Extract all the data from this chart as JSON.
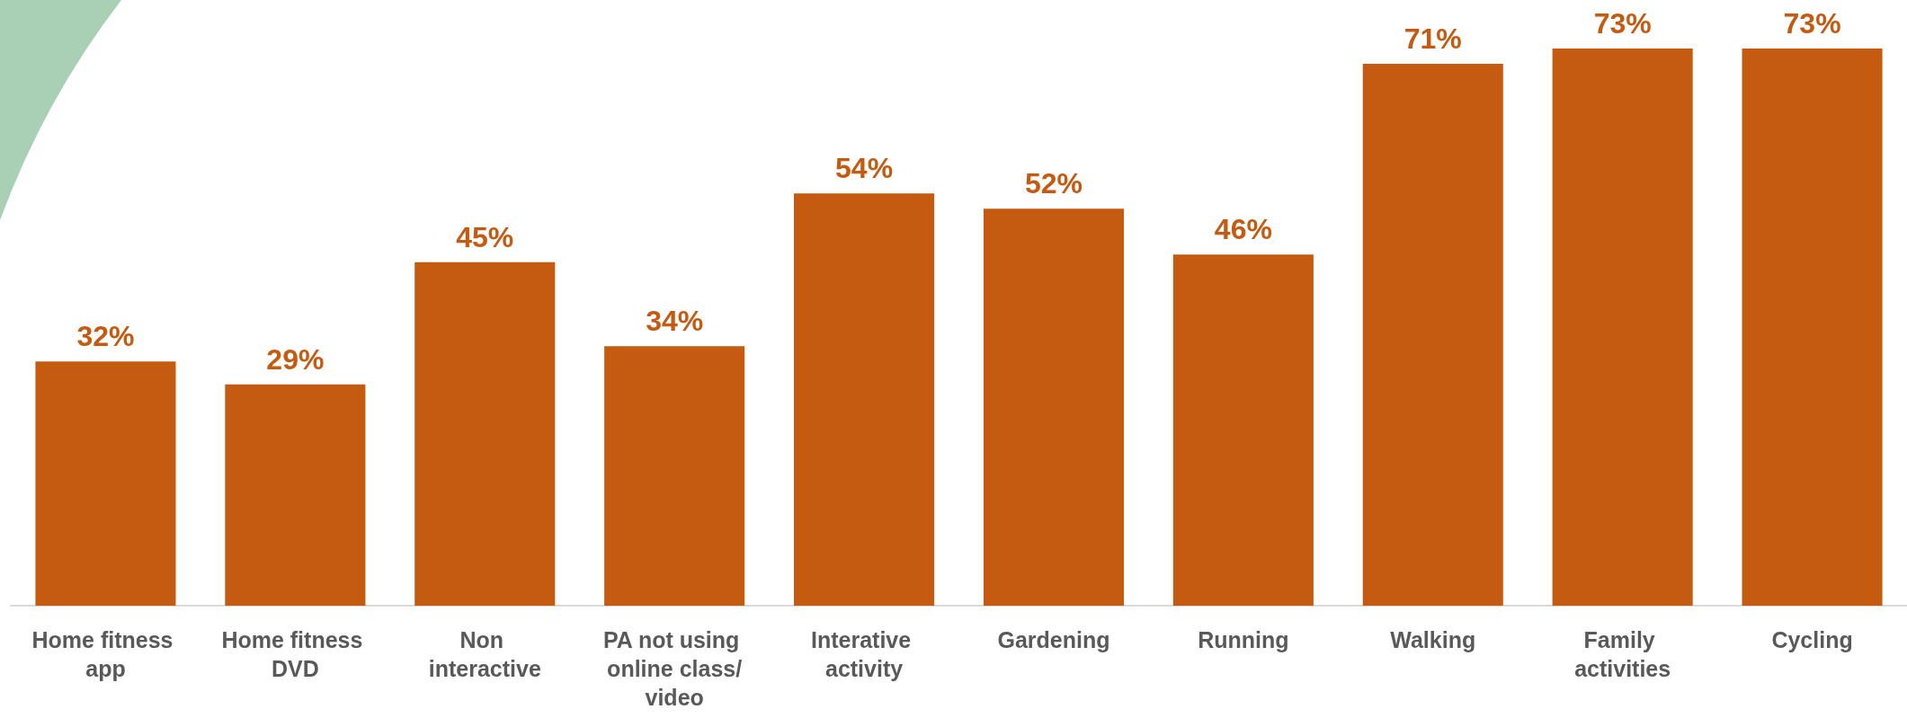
{
  "chart_data": {
    "type": "bar",
    "categories": [
      "Home fitness app",
      "Home fitness DVD",
      "Non interactive",
      "PA not using online class/video",
      "Interative activity",
      "Gardening",
      "Running",
      "Walking",
      "Family activities",
      "Cycling"
    ],
    "values": [
      32,
      29,
      45,
      34,
      54,
      52,
      46,
      71,
      73,
      73
    ],
    "value_labels": [
      "32%",
      "29%",
      "45%",
      "34%",
      "54%",
      "52%",
      "46%",
      "71%",
      "73%",
      "73%"
    ],
    "color": "#c55a11"
  }
}
